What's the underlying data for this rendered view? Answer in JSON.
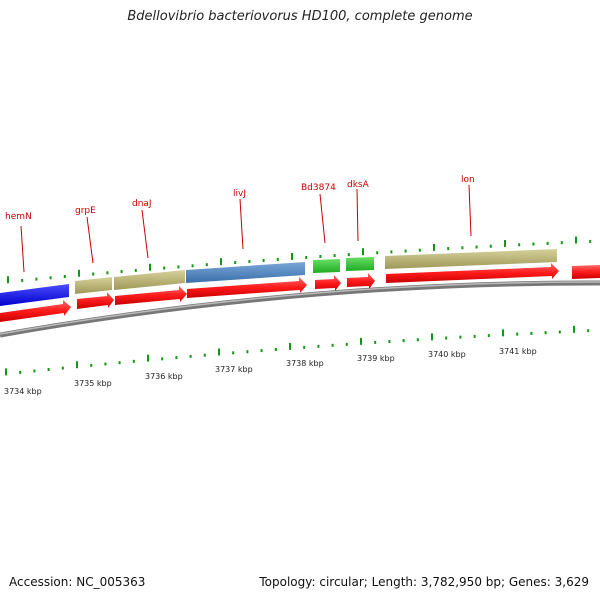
{
  "title": "Bdellovibrio bacteriovorus HD100, complete genome",
  "footer": {
    "accession": "Accession: NC_005363",
    "summary": "Topology: circular; Length: 3,782,950 bp; Genes: 3,629"
  },
  "gene_labels": [
    "hemN",
    "grpE",
    "dnaJ",
    "livJ",
    "Bd3874",
    "dksA",
    "lon"
  ],
  "kbp_labels": [
    "3734 kbp",
    "3735 kbp",
    "3736 kbp",
    "3737 kbp",
    "3738 kbp",
    "3739 kbp",
    "3740 kbp",
    "3741 kbp"
  ],
  "colors": {
    "cds_red": "#ff1a1a",
    "blue_feature": "#1a1aff",
    "khaki_feature": "#bdb76b",
    "steelblue_feature": "#4f86c6",
    "green_feature": "#33cc33",
    "tick_green": "#119911",
    "label_red": "#cc0000",
    "backbone_grey": "#808080"
  }
}
